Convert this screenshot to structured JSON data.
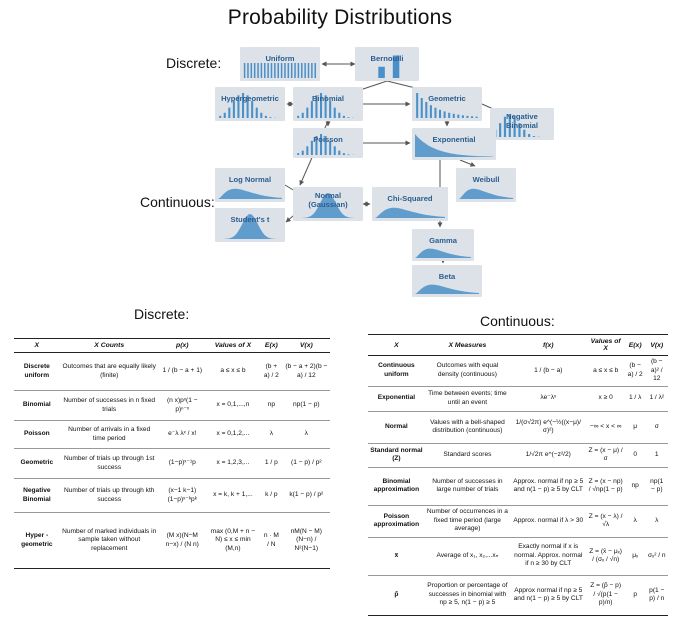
{
  "title": "Probability Distributions",
  "labels": {
    "discrete_diagram": "Discrete:",
    "continuous_diagram": "Continuous:",
    "discrete_table": "Discrete:",
    "continuous_table": "Continuous:"
  },
  "diagram": {
    "nodes": [
      {
        "id": "uniform",
        "label": "Uniform"
      },
      {
        "id": "bernoulli",
        "label": "Bernoulli"
      },
      {
        "id": "hypergeometric",
        "label": "Hypergeometric"
      },
      {
        "id": "binomial",
        "label": "Binomial"
      },
      {
        "id": "geometric",
        "label": "Geometric"
      },
      {
        "id": "negative-binomial",
        "label": "Negative Binomial"
      },
      {
        "id": "poisson",
        "label": "Poisson"
      },
      {
        "id": "exponential",
        "label": "Exponential"
      },
      {
        "id": "log-normal",
        "label": "Log Normal"
      },
      {
        "id": "normal",
        "label": "Normal (Gaussian)"
      },
      {
        "id": "chi-squared",
        "label": "Chi-Squared"
      },
      {
        "id": "weibull",
        "label": "Weibull"
      },
      {
        "id": "students-t",
        "label": "Student's t"
      },
      {
        "id": "gamma",
        "label": "Gamma"
      },
      {
        "id": "beta",
        "label": "Beta"
      }
    ],
    "colors": {
      "box": "#dde2e8",
      "bar": "#4a90c8",
      "label": "#2a5d8f",
      "arrow": "#555555"
    }
  },
  "discrete_table": {
    "headers": [
      "X",
      "X Counts",
      "p(x)",
      "Values of X",
      "E(x)",
      "V(x)"
    ],
    "rows": [
      {
        "name": "Discrete uniform",
        "counts": "Outcomes that are equally likely (finite)",
        "px": "1 / (b − a + 1)",
        "values": "a ≤ x ≤ b",
        "ex": "(b + a) / 2",
        "vx": "(b − a + 2)(b − a) / 12"
      },
      {
        "name": "Binomial",
        "counts": "Number of successes in n fixed trials",
        "px": "(n x)pˣ(1 − p)ⁿ⁻ˣ",
        "values": "x = 0,1,...,n",
        "ex": "np",
        "vx": "np(1 − p)"
      },
      {
        "name": "Poisson",
        "counts": "Number of arrivals in a fixed time period",
        "px": "e⁻λ λˣ / x!",
        "values": "x = 0,1,2,...",
        "ex": "λ",
        "vx": "λ"
      },
      {
        "name": "Geometric",
        "counts": "Number of trials up through 1st success",
        "px": "(1−p)ˣ⁻¹p",
        "values": "x = 1,2,3,...",
        "ex": "1 / p",
        "vx": "(1 − p) / p²"
      },
      {
        "name": "Negative Binomial",
        "counts": "Number of trials up through kth success",
        "px": "(x−1 k−1)(1−p)ˣ⁻ᵏpᵏ",
        "values": "x = k, k + 1,...",
        "ex": "k / p",
        "vx": "k(1 − p) / p²"
      },
      {
        "name": "Hyper - geometric",
        "counts": "Number of marked individuals in sample taken without replacement",
        "px": "(M x)(N−M n−x) / (N n)",
        "values": "max (0,M + n − N) ≤ x ≤ min (M,n)",
        "ex": "n · M / N",
        "vx": "nM(N − M)(N−n) / N²(N−1)"
      }
    ]
  },
  "continuous_table": {
    "headers": [
      "X",
      "X Measures",
      "f(x)",
      "Values of X",
      "E(x)",
      "V(x)"
    ],
    "rows": [
      {
        "name": "Continuous uniform",
        "measures": "Outcomes with equal density (continuous)",
        "fx": "1 / (b − a)",
        "values": "a ≤ x ≤ b",
        "ex": "(b − a) / 2",
        "vx": "(b − a)² / 12"
      },
      {
        "name": "Exponential",
        "measures": "Time between events; time until an event",
        "fx": "λe⁻λˣ",
        "values": "x ≥ 0",
        "ex": "1 / λ",
        "vx": "1 / λ²"
      },
      {
        "name": "Normal",
        "measures": "Values with a bell-shaped distribution (continuous)",
        "fx": "1/(σ√2π) e^(−½((x−μ)/σ)²)",
        "values": "−∞ < x < ∞",
        "ex": "μ",
        "vx": "σ"
      },
      {
        "name": "Standard normal (Z)",
        "measures": "Standard scores",
        "fx": "1/√2π e^(−z²/2)",
        "values": "Z = (x − μ) / σ",
        "ex": "0",
        "vx": "1"
      },
      {
        "name": "Binomial approximation",
        "measures": "Number of successes in large number of trials",
        "fx": "Approx. normal if np ≥ 5 and n(1 − p) ≥ 5 by CLT",
        "values": "Z = (x − np) / √np(1 − p)",
        "ex": "np",
        "vx": "np(1 − p)"
      },
      {
        "name": "Poisson approximation",
        "measures": "Number of occurrences in a fixed time period (large average)",
        "fx": "Approx. normal if λ > 30",
        "values": "Z = (x − λ) / √λ",
        "ex": "λ",
        "vx": "λ"
      },
      {
        "name": "x̄",
        "measures": "Average of x₁, x₂,...xₙ",
        "fx": "Exactly normal if x is normal. Approx. normal if n ≥ 30 by CLT",
        "values": "Z = (x̄ − μₓ) / (σₓ / √n)",
        "ex": "μₓ",
        "vx": "σₓ² / n"
      },
      {
        "name": "p̂",
        "measures": "Proportion or percentage of successes in binomial with np ≥ 5, n(1 − p) ≥ 5",
        "fx": "Approx normal if np ≥ 5 and n(1 − p) ≥ 5 by CLT",
        "values": "Z = (p̂ − p) / √(p(1 − p)/n)",
        "ex": "p",
        "vx": "p(1 − p) / n"
      }
    ]
  }
}
